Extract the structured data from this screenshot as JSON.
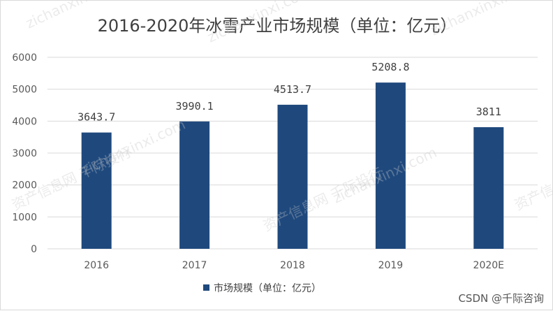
{
  "chart_data": {
    "type": "bar",
    "title": "2016-2020年冰雪产业市场规模（单位：亿元）",
    "categories": [
      "2016",
      "2017",
      "2018",
      "2019",
      "2020E"
    ],
    "series": [
      {
        "name": "市场规模（单位：亿元）",
        "values": [
          3643.7,
          3990.1,
          4513.7,
          5208.8,
          3811
        ],
        "labels": [
          "3643.7",
          "3990.1",
          "4513.7",
          "5208.8",
          "3811"
        ]
      }
    ],
    "ylim": [
      0,
      6000
    ],
    "yticks": [
      0,
      1000,
      2000,
      3000,
      4000,
      5000,
      6000
    ],
    "grid": true,
    "legend_position": "bottom",
    "colors": {
      "bar": "#1f497d",
      "grid": "#d9d9d9"
    }
  },
  "watermark": {
    "texts": [
      "资产信息网 千际投行",
      "zichanxinxi.com"
    ]
  },
  "credit": "CSDN @千际咨询"
}
